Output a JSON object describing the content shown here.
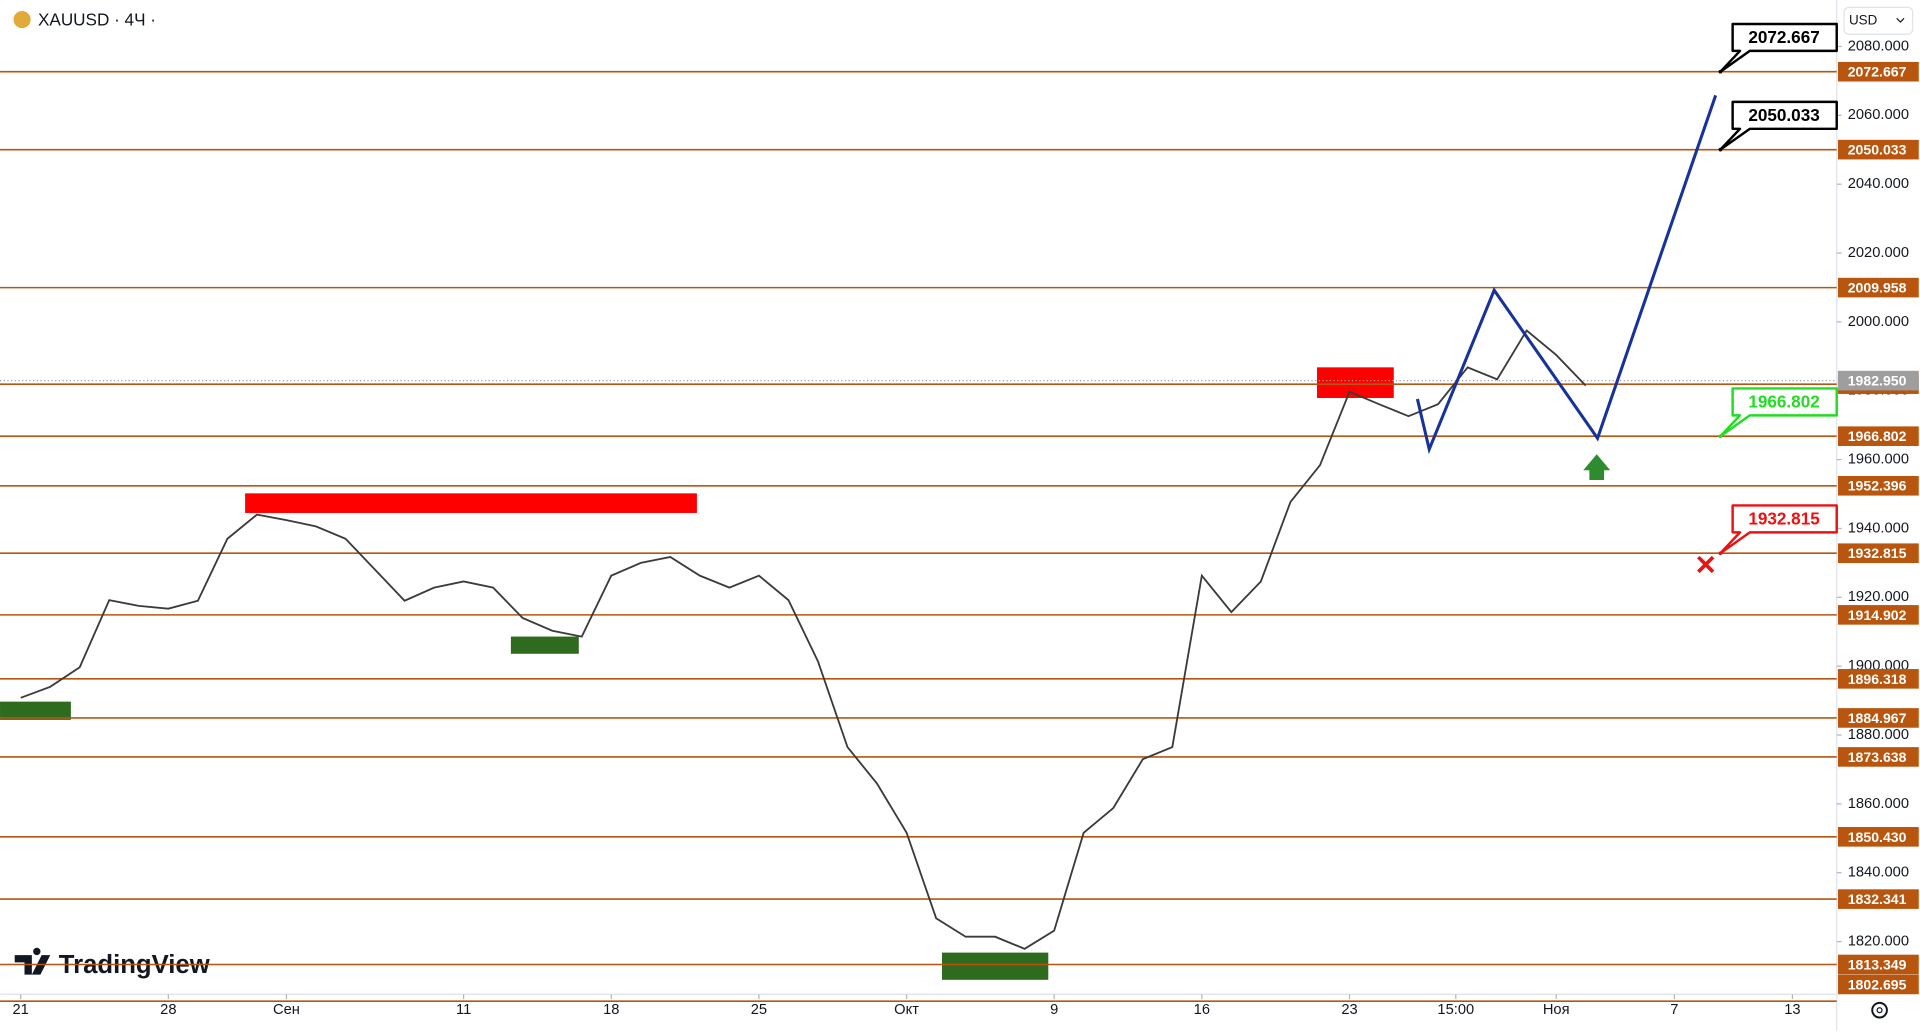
{
  "header": {
    "symbol": "XAUUSD · 4Ч ·",
    "logo": "TradingView",
    "currency": "USD"
  },
  "chart_data": {
    "type": "line",
    "color": "#3b3b3b",
    "x": [
      0,
      1,
      2,
      3,
      4,
      5,
      6,
      7,
      8,
      9,
      10,
      11,
      12,
      13,
      14,
      15,
      16,
      17,
      18,
      19,
      20,
      21,
      22,
      23,
      24,
      25,
      26,
      27,
      28,
      29,
      30,
      31,
      32,
      33,
      34,
      35,
      36,
      37,
      38,
      39,
      40,
      41,
      42,
      43,
      44,
      45,
      46,
      47,
      48,
      49,
      50,
      51,
      52,
      53
    ],
    "values": [
      1890.8,
      1894,
      1899.7,
      1919.2,
      1917.5,
      1916.7,
      1919,
      1937,
      1944,
      1942.4,
      1940.6,
      1937,
      1928,
      1919,
      1922.8,
      1924.6,
      1922.8,
      1914,
      1910.3,
      1908.6,
      1926.3,
      1930,
      1931.7,
      1926.3,
      1922.8,
      1926.3,
      1919.2,
      1901.4,
      1876.5,
      1865.9,
      1851.6,
      1826.8,
      1821.4,
      1821.4,
      1817.9,
      1823.2,
      1851.6,
      1858.8,
      1873,
      1876.5,
      1926.3,
      1915.7,
      1924.6,
      1947.7,
      1958.4,
      1979.7,
      1976.1,
      1972.6,
      1976.1,
      1986.8,
      1983.3,
      1997.5,
      1990.4,
      1981.5
    ],
    "xlim": [
      -0.7,
      61.5
    ],
    "xticks": [
      {
        "value": 0,
        "label": "21"
      },
      {
        "value": 5,
        "label": "28"
      },
      {
        "value": 9,
        "label": "Сен"
      },
      {
        "value": 15,
        "label": "11"
      },
      {
        "value": 20,
        "label": "18"
      },
      {
        "value": 25,
        "label": "25"
      },
      {
        "value": 30,
        "label": "Окт"
      },
      {
        "value": 35,
        "label": "9"
      },
      {
        "value": 40,
        "label": "16"
      },
      {
        "value": 45,
        "label": "23"
      },
      {
        "value": 48.6,
        "label": "15:00"
      },
      {
        "value": 52,
        "label": "Ноя"
      },
      {
        "value": 56,
        "label": "7"
      },
      {
        "value": 60,
        "label": "13"
      }
    ],
    "ylim": [
      1804.7,
      2093.5
    ],
    "yticks": [
      {
        "value": 2080,
        "label": "2080.000"
      },
      {
        "value": 2060,
        "label": "2060.000"
      },
      {
        "value": 2040,
        "label": "2040.000"
      },
      {
        "value": 2020,
        "label": "2020.000"
      },
      {
        "value": 2000,
        "label": "2000.000"
      },
      {
        "value": 1980,
        "label": "1980.000"
      },
      {
        "value": 1960,
        "label": "1960.000"
      },
      {
        "value": 1940,
        "label": "1940.000"
      },
      {
        "value": 1920,
        "label": "1920.000"
      },
      {
        "value": 1900,
        "label": "1900.000"
      },
      {
        "value": 1880,
        "label": "1880.000"
      },
      {
        "value": 1860,
        "label": "1860.000"
      },
      {
        "value": 1840,
        "label": "1840.000"
      },
      {
        "value": 1820,
        "label": "1820.000"
      }
    ],
    "level_color": "#b8560f",
    "levels": [
      {
        "value": 2072.667,
        "label": "2072.667"
      },
      {
        "value": 2050.033,
        "label": "2050.033"
      },
      {
        "value": 2009.958,
        "label": "2009.958"
      },
      {
        "value": 1981.916,
        "label": "1981.916"
      },
      {
        "value": 1966.802,
        "label": "1966.802"
      },
      {
        "value": 1952.396,
        "label": "1952.396"
      },
      {
        "value": 1932.815,
        "label": "1932.815"
      },
      {
        "value": 1914.902,
        "label": "1914.902"
      },
      {
        "value": 1896.318,
        "label": "1896.318"
      },
      {
        "value": 1884.967,
        "label": "1884.967"
      },
      {
        "value": 1873.638,
        "label": "1873.638"
      },
      {
        "value": 1850.43,
        "label": "1850.430"
      },
      {
        "value": 1832.341,
        "label": "1832.341"
      },
      {
        "value": 1813.349,
        "label": "1813.349"
      },
      {
        "value": 1802.695,
        "label": "1802.695"
      }
    ],
    "current_price": {
      "value": 1982.95,
      "label": "1982.950",
      "color": "#9e9e9e"
    },
    "projection": {
      "color": "#17329a",
      "x": [
        47.3,
        47.7,
        49.9,
        53.4,
        57.4
      ],
      "values": [
        1977.6,
        1963.0,
        2009.2,
        1966.2,
        2065.8
      ]
    },
    "zones": [
      {
        "x0": 7.6,
        "x1": 22.9,
        "y0": 1944.5,
        "y1": 1950.2,
        "color": "#ff0000"
      },
      {
        "x0": 43.9,
        "x1": 46.5,
        "y0": 1977.9,
        "y1": 1986.8,
        "color": "#ff0000"
      },
      {
        "x0": -0.7,
        "x1": 1.7,
        "y0": 1884.4,
        "y1": 1889.7,
        "color": "#2e6b1e"
      },
      {
        "x0": 16.6,
        "x1": 18.9,
        "y0": 1903.6,
        "y1": 1908.6,
        "color": "#2e6b1e"
      },
      {
        "x0": 31.2,
        "x1": 34.8,
        "y0": 1808.9,
        "y1": 1816.8,
        "color": "#2e6b1e"
      }
    ],
    "callouts": [
      {
        "value": 2072.667,
        "label": "2072.667",
        "color": "#000000"
      },
      {
        "value": 2050.033,
        "label": "2050.033",
        "color": "#000000"
      },
      {
        "value": 1966.802,
        "label": "1966.802",
        "color": "#22dd22"
      },
      {
        "value": 1932.815,
        "label": "1932.815",
        "color": "#ee1111"
      }
    ]
  }
}
